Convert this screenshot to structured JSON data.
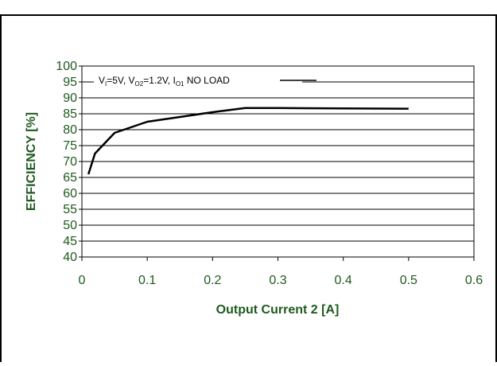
{
  "colors": {
    "axis_text": "#1f5a1f",
    "line": "#000000",
    "grid": "#000000"
  },
  "chart_data": {
    "type": "line",
    "title": "",
    "xlabel": "Output Current 2  [A]",
    "ylabel": "EFFICIENCY [%]",
    "xlim": [
      0,
      0.6
    ],
    "ylim": [
      40,
      100
    ],
    "x_ticks": [
      "0",
      "0.1",
      "0.2",
      "0.3",
      "0.4",
      "0.5",
      "0.6"
    ],
    "y_ticks": [
      "40",
      "45",
      "50",
      "55",
      "60",
      "65",
      "70",
      "75",
      "80",
      "85",
      "90",
      "95",
      "100"
    ],
    "grid": "horizontal",
    "legend_position": "top",
    "legend": {
      "v_main": "V",
      "v_sub": "I",
      "v_val": "=5V, ",
      "vo_main": "V",
      "vo_sub": "O2",
      "vo_val": "=1.2V, ",
      "io_main": "I",
      "io_sub": "O1",
      "io_val": " NO LOAD"
    },
    "series": [
      {
        "x": [
          0.01,
          0.02,
          0.05,
          0.1,
          0.15,
          0.2,
          0.25,
          0.3,
          0.4,
          0.5
        ],
        "y": [
          66,
          72.5,
          79,
          82.5,
          84,
          85.5,
          86.8,
          86.8,
          86.7,
          86.6
        ]
      }
    ]
  }
}
